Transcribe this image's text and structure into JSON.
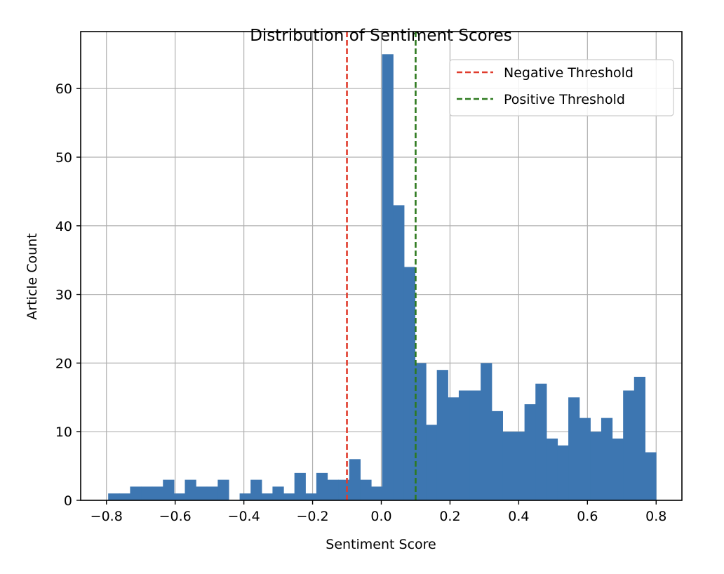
{
  "chart_data": {
    "type": "bar",
    "title": "Distribution of Sentiment Scores",
    "xlabel": "Sentiment Score",
    "ylabel": "Article Count",
    "xlim": [
      -0.875,
      0.875
    ],
    "ylim": [
      0,
      68.3
    ],
    "xticks": [
      -0.8,
      -0.6,
      -0.4,
      -0.2,
      0.0,
      0.2,
      0.4,
      0.6,
      0.8
    ],
    "xtick_labels": [
      "−0.8",
      "−0.6",
      "−0.4",
      "−0.2",
      "0.0",
      "0.2",
      "0.4",
      "0.6",
      "0.8"
    ],
    "yticks": [
      0,
      10,
      20,
      30,
      40,
      50,
      60
    ],
    "ytick_labels": [
      "0",
      "10",
      "20",
      "30",
      "40",
      "50",
      "60"
    ],
    "grid": true,
    "bar_color": "#3d76b1",
    "bin_start": -0.795,
    "bin_width": 0.03189,
    "counts": [
      1,
      1,
      2,
      2,
      2,
      3,
      1,
      3,
      2,
      2,
      3,
      0,
      1,
      3,
      1,
      2,
      1,
      4,
      1,
      4,
      3,
      3,
      6,
      3,
      2,
      65,
      43,
      34,
      20,
      11,
      19,
      15,
      16,
      16,
      20,
      13,
      10,
      10,
      14,
      17,
      9,
      8,
      15,
      12,
      10,
      12,
      9,
      16,
      18,
      7
    ],
    "thresholds": [
      {
        "name": "Negative Threshold",
        "x": -0.1,
        "color": "#e03c2d"
      },
      {
        "name": "Positive Threshold",
        "x": 0.1,
        "color": "#2e7a1f"
      }
    ],
    "legend_placement": "top-right"
  }
}
